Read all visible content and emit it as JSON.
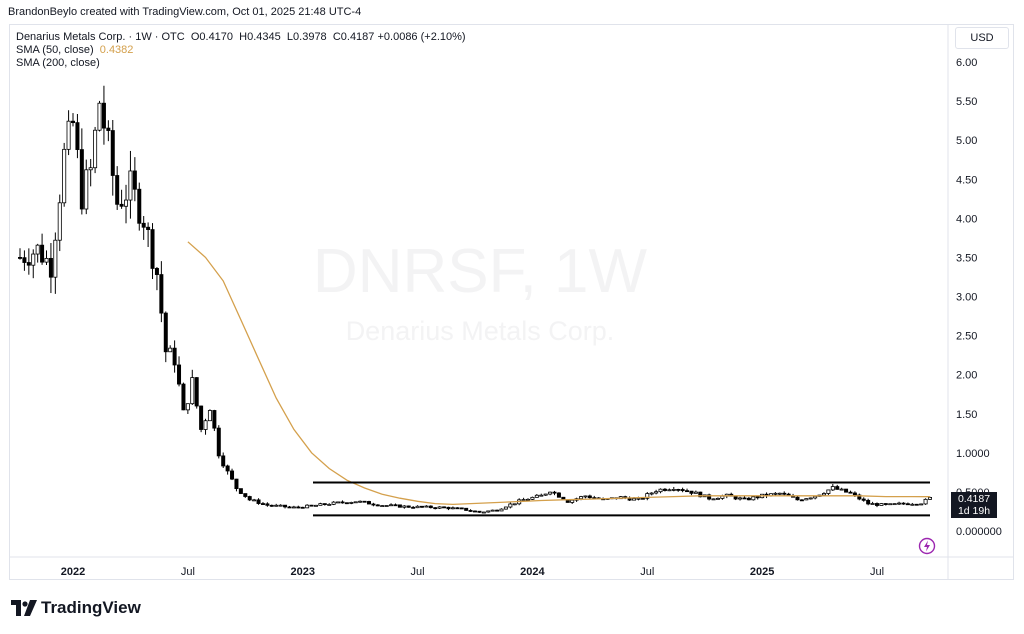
{
  "credit": "BrandonBeylo created with TradingView.com, Oct 01, 2025 21:48 UTC-4",
  "legend": {
    "symbol": "Denarius Metals Corp. · 1W · OTC",
    "o_label": "O",
    "o": "0.4170",
    "h_label": "H",
    "h": "0.4345",
    "l_label": "L",
    "l": "0.3978",
    "c_label": "C",
    "c": "0.4187",
    "change": "+0.0086 (+2.10%)",
    "sma50_label": "SMA (50, close)",
    "sma50_value": "0.4382",
    "sma200_label": "SMA (200, close)"
  },
  "currency": "USD",
  "last_price": "0.4187",
  "countdown": "1d 19h",
  "watermark": {
    "ticker": "DNRSF, 1W",
    "name": "Denarius Metals Corp."
  },
  "logo": "TradingView",
  "colors": {
    "sma50": "#d4a04c",
    "candle": "#000000",
    "grid": "#e0e3eb"
  },
  "chart_data": {
    "type": "candlestick",
    "y_ticks": [
      "6.00",
      "5.50",
      "5.00",
      "4.50",
      "4.00",
      "3.50",
      "3.00",
      "2.50",
      "2.00",
      "1.50",
      "1.0000",
      "0.5000",
      "0.000000"
    ],
    "y_tick_values": [
      6.0,
      5.5,
      5.0,
      4.5,
      4.0,
      3.5,
      3.0,
      2.5,
      2.0,
      1.5,
      1.0,
      0.5,
      0.0
    ],
    "ylim": [
      0,
      6.2
    ],
    "x_ticks": [
      {
        "label": "2022",
        "week": 12
      },
      {
        "label": "Jul",
        "week": 38
      },
      {
        "label": "2023",
        "week": 64
      },
      {
        "label": "Jul",
        "week": 90
      },
      {
        "label": "2024",
        "week": 116
      },
      {
        "label": "Jul",
        "week": 142
      },
      {
        "label": "2025",
        "week": 168
      },
      {
        "label": "Jul",
        "week": 194
      }
    ],
    "anchors": [
      [
        0,
        3.5
      ],
      [
        4,
        3.6
      ],
      [
        7,
        3.4
      ],
      [
        10,
        4.8
      ],
      [
        12,
        5.2
      ],
      [
        14,
        4.3
      ],
      [
        16,
        4.6
      ],
      [
        18,
        5.5
      ],
      [
        20,
        4.9
      ],
      [
        22,
        4.2
      ],
      [
        25,
        4.4
      ],
      [
        28,
        4.0
      ],
      [
        31,
        3.3
      ],
      [
        33,
        2.3
      ],
      [
        35,
        2.2
      ],
      [
        37,
        1.5
      ],
      [
        39,
        1.9
      ],
      [
        41,
        1.3
      ],
      [
        43,
        1.6
      ],
      [
        45,
        1.0
      ],
      [
        47,
        0.75
      ],
      [
        49,
        0.55
      ],
      [
        52,
        0.4
      ],
      [
        56,
        0.33
      ],
      [
        62,
        0.3
      ],
      [
        66,
        0.32
      ],
      [
        70,
        0.35
      ],
      [
        76,
        0.38
      ],
      [
        82,
        0.33
      ],
      [
        88,
        0.31
      ],
      [
        96,
        0.3
      ],
      [
        100,
        0.28
      ],
      [
        104,
        0.24
      ],
      [
        108,
        0.27
      ],
      [
        110,
        0.32
      ],
      [
        114,
        0.4
      ],
      [
        118,
        0.45
      ],
      [
        120,
        0.52
      ],
      [
        124,
        0.38
      ],
      [
        128,
        0.45
      ],
      [
        132,
        0.4
      ],
      [
        136,
        0.43
      ],
      [
        140,
        0.4
      ],
      [
        144,
        0.52
      ],
      [
        148,
        0.56
      ],
      [
        152,
        0.5
      ],
      [
        156,
        0.42
      ],
      [
        160,
        0.45
      ],
      [
        164,
        0.4
      ],
      [
        168,
        0.45
      ],
      [
        172,
        0.48
      ],
      [
        176,
        0.4
      ],
      [
        180,
        0.45
      ],
      [
        184,
        0.55
      ],
      [
        188,
        0.48
      ],
      [
        192,
        0.35
      ],
      [
        196,
        0.33
      ],
      [
        200,
        0.35
      ],
      [
        204,
        0.36
      ],
      [
        206,
        0.4187
      ]
    ],
    "sma50": [
      [
        38,
        3.7
      ],
      [
        42,
        3.5
      ],
      [
        46,
        3.2
      ],
      [
        50,
        2.7
      ],
      [
        54,
        2.2
      ],
      [
        58,
        1.7
      ],
      [
        62,
        1.3
      ],
      [
        66,
        1.0
      ],
      [
        70,
        0.8
      ],
      [
        74,
        0.65
      ],
      [
        78,
        0.55
      ],
      [
        82,
        0.47
      ],
      [
        86,
        0.42
      ],
      [
        90,
        0.38
      ],
      [
        94,
        0.35
      ],
      [
        98,
        0.34
      ],
      [
        102,
        0.35
      ],
      [
        106,
        0.36
      ],
      [
        110,
        0.37
      ],
      [
        114,
        0.38
      ],
      [
        118,
        0.39
      ],
      [
        124,
        0.4
      ],
      [
        130,
        0.41
      ],
      [
        136,
        0.42
      ],
      [
        142,
        0.43
      ],
      [
        148,
        0.44
      ],
      [
        154,
        0.45
      ],
      [
        160,
        0.45
      ],
      [
        166,
        0.45
      ],
      [
        172,
        0.45
      ],
      [
        178,
        0.45
      ],
      [
        184,
        0.45
      ],
      [
        190,
        0.45
      ],
      [
        196,
        0.44
      ],
      [
        202,
        0.44
      ],
      [
        206,
        0.4382
      ]
    ],
    "range_lines": [
      0.62,
      0.2
    ]
  }
}
